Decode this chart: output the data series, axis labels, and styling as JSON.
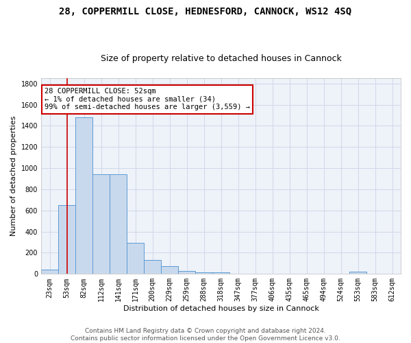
{
  "title1": "28, COPPERMILL CLOSE, HEDNESFORD, CANNOCK, WS12 4SQ",
  "title2": "Size of property relative to detached houses in Cannock",
  "xlabel": "Distribution of detached houses by size in Cannock",
  "ylabel": "Number of detached properties",
  "categories": [
    "23sqm",
    "53sqm",
    "82sqm",
    "112sqm",
    "141sqm",
    "171sqm",
    "200sqm",
    "229sqm",
    "259sqm",
    "288sqm",
    "318sqm",
    "347sqm",
    "377sqm",
    "406sqm",
    "435sqm",
    "465sqm",
    "494sqm",
    "524sqm",
    "553sqm",
    "583sqm",
    "612sqm"
  ],
  "bar_heights": [
    40,
    650,
    1480,
    940,
    940,
    295,
    130,
    75,
    25,
    15,
    15,
    0,
    0,
    0,
    0,
    0,
    0,
    0,
    20,
    0,
    0
  ],
  "bar_color": "#c9d9ed",
  "bar_edge_color": "#5b9bd5",
  "grid_color": "#d0d8e8",
  "background_color": "#eef2f9",
  "vline_x": 1.0,
  "vline_color": "#cc0000",
  "annotation_text": "28 COPPERMILL CLOSE: 52sqm\n← 1% of detached houses are smaller (34)\n99% of semi-detached houses are larger (3,559) →",
  "annotation_box_color": "#ffffff",
  "annotation_box_edge_color": "#cc0000",
  "ylim": [
    0,
    1850
  ],
  "yticks": [
    0,
    200,
    400,
    600,
    800,
    1000,
    1200,
    1400,
    1600,
    1800
  ],
  "footer": "Contains HM Land Registry data © Crown copyright and database right 2024.\nContains public sector information licensed under the Open Government Licence v3.0.",
  "title1_fontsize": 10,
  "title2_fontsize": 9,
  "ylabel_fontsize": 8,
  "xlabel_fontsize": 8,
  "tick_fontsize": 7,
  "annotation_fontsize": 7.5,
  "footer_fontsize": 6.5
}
